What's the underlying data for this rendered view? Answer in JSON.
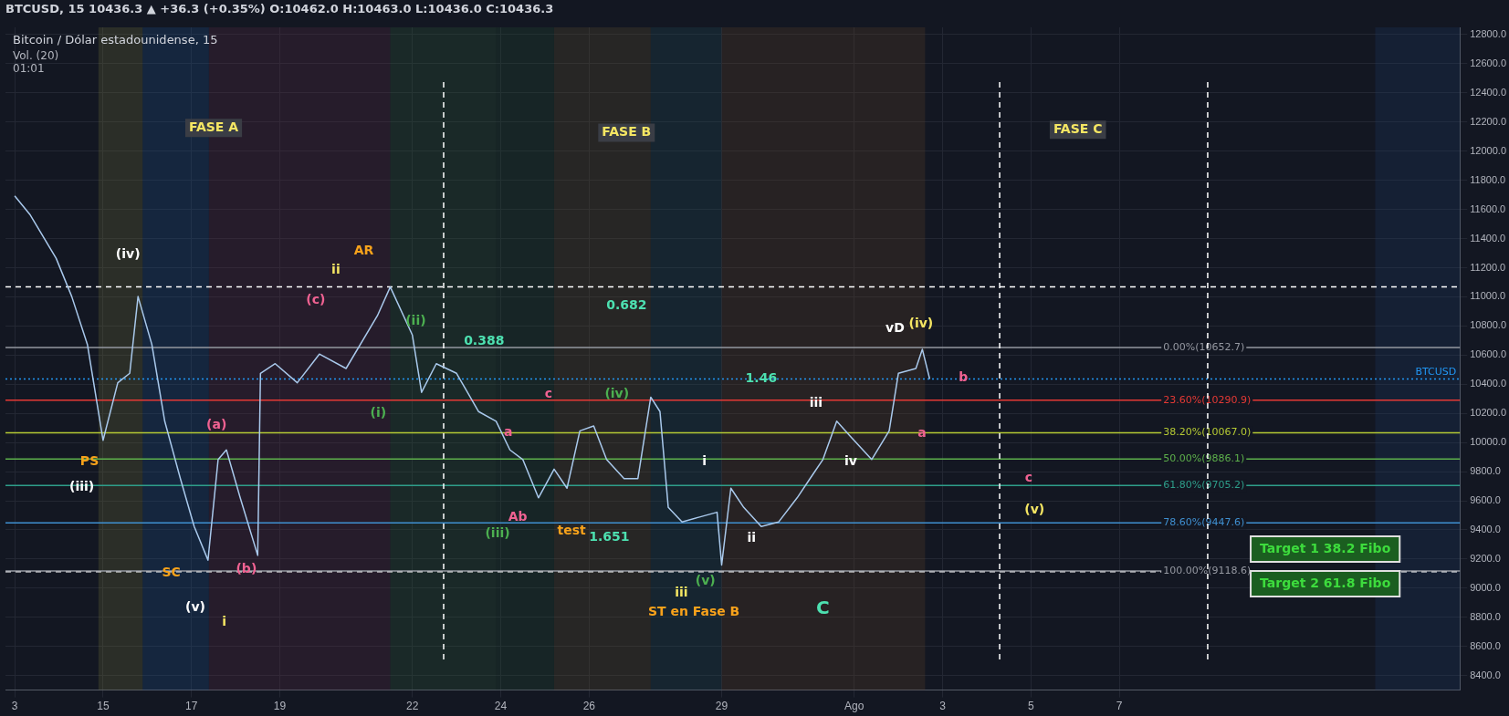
{
  "chart_data": {
    "type": "line",
    "title": "Bitcoin / Dólar estadounidense, 15",
    "subtitle": "BTCUSD, 15  10436.3 ▲ +36.3 (+0.35%) O:10462.0 H:10463.0 L:10436.0 C:10436.3",
    "x": [
      "--07-13T00:00",
      "--07-13T08:30",
      "--07-13T22:30",
      "--07-14T07:00",
      "--07-14T15:30",
      "--07-15T00:00",
      "--07-15T08:00",
      "--07-15T14:30",
      "--07-15T19:00",
      "--07-16T02:30",
      "--07-16T09:30",
      "--07-16T18:00",
      "--07-17T01:30",
      "--07-17T09:00",
      "--07-17T14:30",
      "--07-17T19:00",
      "--07-18T02:30",
      "--07-18T12:00",
      "--07-18T13:30",
      "--07-18T21:30",
      "--07-19T09:30",
      "--07-19T21:30",
      "--07-20T12:00",
      "--07-21T05:00",
      "--07-21T12:00",
      "--07-22T00:00",
      "--07-22T05:00",
      "--07-22T13:00",
      "--07-23T00:00",
      "--07-23T12:00",
      "--07-23T21:30",
      "--07-24T05:00",
      "--07-24T12:00",
      "--07-24T20:30",
      "--07-25T05:00",
      "--07-25T12:00",
      "--07-25T19:00",
      "--07-26T02:30",
      "--07-26T09:30",
      "--07-26T19:00",
      "--07-27T02:30",
      "--07-27T09:30",
      "--07-27T14:30",
      "--07-27T19:00",
      "--07-28T02:30",
      "--07-28T12:00",
      "--07-28T21:30",
      "--07-29T00:00",
      "--07-29T05:00",
      "--07-29T12:00",
      "--07-29T21:30",
      "--07-30T07:00",
      "--07-30T17:00",
      "--07-31T00:00",
      "--07-31T07:00",
      "--07-31T14:30",
      "--07-31T21:30",
      "--08-01T09:30",
      "--08-01T19:00",
      "--08-02T00:00",
      "--08-02T09:30",
      "--08-02T13:00",
      "--08-02T17:00"
    ],
    "series": [
      {
        "color": "#a9c9ec",
        "values": [
          11693,
          11561,
          11265,
          11002,
          10673,
          10015,
          10410,
          10475,
          11002,
          10673,
          10146,
          9752,
          9423,
          9192,
          9883,
          9949,
          9620,
          9225,
          10475,
          10541,
          10410,
          10607,
          10508,
          10870,
          11068,
          10738,
          10344,
          10541,
          10475,
          10212,
          10146,
          9949,
          9883,
          9620,
          9817,
          9686,
          10080,
          10113,
          9883,
          9752,
          9752,
          10311,
          10212,
          9554,
          9455,
          9488,
          9521,
          9159,
          9686,
          9554,
          9423,
          9455,
          9620,
          9752,
          9883,
          10146,
          10048,
          9883,
          10080,
          10475,
          10508,
          10640,
          10436
        ]
      }
    ],
    "xlim": [
      "--07-12T19:00",
      "--08-14T17:00"
    ],
    "xticks": [
      {
        "value": "--07-13",
        "label": "3"
      },
      {
        "value": "--07-15",
        "label": "15"
      },
      {
        "value": "--07-17",
        "label": "17"
      },
      {
        "value": "--07-19",
        "label": "19"
      },
      {
        "value": "--07-22",
        "label": "22"
      },
      {
        "value": "--07-24",
        "label": "24"
      },
      {
        "value": "--07-26",
        "label": "26"
      },
      {
        "value": "--07-29",
        "label": "29"
      },
      {
        "value": "--08-01",
        "label": "Ago"
      },
      {
        "value": "--08-03",
        "label": "3"
      },
      {
        "value": "--08-05",
        "label": "5"
      },
      {
        "value": "--08-07",
        "label": "7"
      }
    ],
    "ylim": [
      8300,
      12850
    ],
    "yticks": [
      {
        "value": 8400,
        "label": "8400.0"
      },
      {
        "value": 8600,
        "label": "8600.0"
      },
      {
        "value": 8800,
        "label": "8800.0"
      },
      {
        "value": 9000,
        "label": "9000.0"
      },
      {
        "value": 9200,
        "label": "9200.0"
      },
      {
        "value": 9400,
        "label": "9400.0"
      },
      {
        "value": 9600,
        "label": "9600.0"
      },
      {
        "value": 9800,
        "label": "9800.0"
      },
      {
        "value": 10000,
        "label": "10000.0"
      },
      {
        "value": 10200,
        "label": "10200.0"
      },
      {
        "value": 10400,
        "label": "10400.0"
      },
      {
        "value": 10600,
        "label": "10600.0"
      },
      {
        "value": 10800,
        "label": "10800.0"
      },
      {
        "value": 11000,
        "label": "11000.0"
      },
      {
        "value": 11200,
        "label": "11200.0"
      },
      {
        "value": 11400,
        "label": "11400.0"
      },
      {
        "value": 11600,
        "label": "11600.0"
      },
      {
        "value": 11800,
        "label": "11800.0"
      },
      {
        "value": 12000,
        "label": "12000.0"
      },
      {
        "value": 12200,
        "label": "12200.0"
      },
      {
        "value": 12400,
        "label": "12400.0"
      },
      {
        "value": 12600,
        "label": "12600.0"
      },
      {
        "value": 12800,
        "label": "12800.0"
      }
    ],
    "grid": true,
    "bands": [
      {
        "axis": "x",
        "from": "--07-14T21:30",
        "to": "--07-15T21:30",
        "color": "#6b6b3a"
      },
      {
        "axis": "x",
        "from": "--07-15T21:30",
        "to": "--07-17T09:30",
        "color": "#1d4f8a"
      },
      {
        "axis": "x",
        "from": "--07-17T09:30",
        "to": "--07-21T12:00",
        "color": "#5a2a44"
      },
      {
        "axis": "x",
        "from": "--07-21T12:00",
        "to": "--07-23T21:30",
        "color": "#2f5a3a"
      },
      {
        "axis": "x",
        "from": "--07-23T21:30",
        "to": "--07-25T05:00",
        "color": "#234a33"
      },
      {
        "axis": "x",
        "from": "--07-25T05:00",
        "to": "--07-27T09:30",
        "color": "#5c4f30"
      },
      {
        "axis": "x",
        "from": "--07-27T09:30",
        "to": "--07-29T00:00",
        "color": "#1f4a55"
      },
      {
        "axis": "x",
        "from": "--07-29T00:00",
        "to": "--08-02T14:30",
        "color": "#5e4228"
      },
      {
        "axis": "x",
        "from": "--08-12T19:00",
        "to": "--08-14T17:00",
        "color": "#1d3a66"
      }
    ],
    "ref_lines": [
      {
        "axis": "y",
        "value": 11068,
        "color": "#ffffff",
        "line_style": "dashed"
      },
      {
        "axis": "y",
        "value": 9113,
        "color": "#ffffff",
        "line_style": "dashed"
      },
      {
        "axis": "y",
        "value": 10436.3,
        "label": "BTCUSD",
        "color": "#2196f3",
        "line_style": "dotted"
      },
      {
        "axis": "y",
        "value": 10652.7,
        "label": "0.00%(10652.7)",
        "color": "#9598a1",
        "line_style": "solid"
      },
      {
        "axis": "y",
        "value": 10290.9,
        "label": "23.60%(10290.9)",
        "color": "#e53935",
        "line_style": "solid"
      },
      {
        "axis": "y",
        "value": 10067.0,
        "label": "38.20%(10067.0)",
        "color": "#b5c934",
        "line_style": "solid"
      },
      {
        "axis": "y",
        "value": 9886.1,
        "label": "50.00%(9886.1)",
        "color": "#5db04b",
        "line_style": "solid"
      },
      {
        "axis": "y",
        "value": 9705.2,
        "label": "61.80%(9705.2)",
        "color": "#2e9e8a",
        "line_style": "solid"
      },
      {
        "axis": "y",
        "value": 9447.6,
        "label": "78.60%(9447.6)",
        "color": "#3f8fd0",
        "line_style": "solid"
      },
      {
        "axis": "y",
        "value": 9118.6,
        "label": "100.00%(9118.6)",
        "color": "#9598a1",
        "line_style": "solid"
      },
      {
        "axis": "x",
        "value": "--07-22T17:00",
        "color": "#ffffff",
        "line_style": "dashed"
      },
      {
        "axis": "x",
        "value": "--08-04T07:00",
        "color": "#ffffff",
        "line_style": "dashed"
      },
      {
        "axis": "x",
        "value": "--08-09T00:00",
        "color": "#ffffff",
        "line_style": "dashed"
      }
    ],
    "annotations": [
      "Vol. (20)",
      "01:01",
      "FASE A",
      "FASE B",
      "FASE C",
      "PS",
      "(iii)",
      "(iv)",
      "SC",
      "(v)",
      "i",
      "(a)",
      "(b)",
      "(c)",
      "ii",
      "AR",
      "(ii)",
      "(i)",
      "0.388",
      "0.682",
      "c",
      "a",
      "Ab",
      "test",
      "(iii)",
      "(iv)",
      "1.651",
      "iii",
      "ST en Fase B",
      "(v)",
      "C",
      "1.46",
      "i",
      "ii",
      "iii",
      "iv",
      "vD",
      "(iv)",
      "b",
      "a",
      "c",
      "(v)",
      "Target 1 38.2 Fibo",
      "Target 2 61.8 Fibo"
    ]
  }
}
